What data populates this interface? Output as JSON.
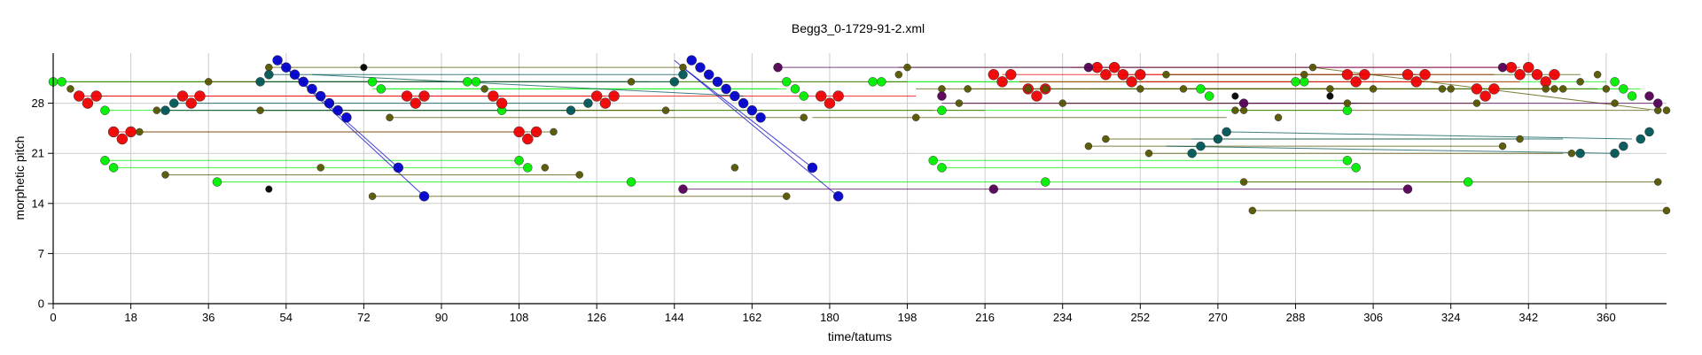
{
  "chart_data": {
    "type": "scatter",
    "title": "Begg3_0-1729-91-2.xml",
    "xlabel": "time/tatums",
    "ylabel": "morphetic pitch",
    "xlim": [
      0,
      374
    ],
    "ylim": [
      0,
      35
    ],
    "xticks": [
      0,
      18,
      36,
      54,
      72,
      90,
      108,
      126,
      144,
      162,
      180,
      198,
      216,
      234,
      252,
      270,
      288,
      306,
      324,
      342,
      360
    ],
    "yticks": [
      0,
      7,
      14,
      21,
      28
    ],
    "grid": true,
    "colors": {
      "green": "#00ee00",
      "red": "#ee0000",
      "blue": "#0000cc",
      "olive": "#555500",
      "teal": "#005555",
      "purple": "#550055",
      "black": "#000000"
    },
    "series": [
      {
        "color": "green",
        "segments": [
          [
            0,
            31,
            90,
            31
          ],
          [
            2,
            31,
            96,
            31
          ],
          [
            98,
            31,
            290,
            31
          ],
          [
            190,
            31,
            360,
            31
          ],
          [
            74,
            30,
            168,
            30
          ],
          [
            76,
            30,
            170,
            30
          ],
          [
            240,
            30,
            365,
            30
          ],
          [
            242,
            30,
            368,
            30
          ],
          [
            12,
            27,
            108,
            27
          ],
          [
            104,
            27,
            204,
            27
          ],
          [
            206,
            27,
            300,
            27
          ],
          [
            12,
            20,
            108,
            20
          ],
          [
            14,
            19,
            110,
            19
          ],
          [
            204,
            20,
            300,
            20
          ],
          [
            206,
            19,
            302,
            19
          ],
          [
            38,
            17,
            134,
            17
          ],
          [
            134,
            17,
            230,
            17
          ],
          [
            230,
            17,
            328,
            17
          ]
        ],
        "points": [
          [
            0,
            31
          ],
          [
            2,
            31
          ],
          [
            12,
            27
          ],
          [
            12,
            20
          ],
          [
            14,
            19
          ],
          [
            38,
            17
          ],
          [
            74,
            31
          ],
          [
            76,
            30
          ],
          [
            96,
            31
          ],
          [
            98,
            31
          ],
          [
            104,
            27
          ],
          [
            108,
            20
          ],
          [
            110,
            19
          ],
          [
            134,
            17
          ],
          [
            170,
            31
          ],
          [
            172,
            30
          ],
          [
            174,
            29
          ],
          [
            190,
            31
          ],
          [
            192,
            31
          ],
          [
            204,
            20
          ],
          [
            206,
            19
          ],
          [
            206,
            27
          ],
          [
            230,
            17
          ],
          [
            266,
            30
          ],
          [
            268,
            29
          ],
          [
            288,
            31
          ],
          [
            290,
            31
          ],
          [
            300,
            20
          ],
          [
            300,
            27
          ],
          [
            302,
            19
          ],
          [
            328,
            17
          ],
          [
            362,
            31
          ],
          [
            364,
            30
          ],
          [
            366,
            29
          ]
        ]
      },
      {
        "color": "red",
        "segments": [
          [
            6,
            29,
            102,
            29
          ],
          [
            10,
            29,
            104,
            29
          ],
          [
            104,
            29,
            200,
            29
          ],
          [
            14,
            24,
            110,
            24
          ],
          [
            90,
            29,
            128,
            29
          ],
          [
            220,
            32,
            316,
            32
          ],
          [
            224,
            31,
            318,
            31
          ],
          [
            236,
            33,
            340,
            33
          ],
          [
            248,
            32,
            334,
            32
          ],
          [
            252,
            31,
            340,
            31
          ]
        ],
        "points": [
          [
            6,
            29
          ],
          [
            8,
            28
          ],
          [
            10,
            29
          ],
          [
            14,
            24
          ],
          [
            16,
            23
          ],
          [
            18,
            24
          ],
          [
            30,
            29
          ],
          [
            32,
            28
          ],
          [
            34,
            29
          ],
          [
            82,
            29
          ],
          [
            84,
            28
          ],
          [
            86,
            29
          ],
          [
            102,
            29
          ],
          [
            104,
            28
          ],
          [
            108,
            24
          ],
          [
            110,
            23
          ],
          [
            112,
            24
          ],
          [
            126,
            29
          ],
          [
            128,
            28
          ],
          [
            130,
            29
          ],
          [
            178,
            29
          ],
          [
            180,
            28
          ],
          [
            182,
            29
          ],
          [
            218,
            32
          ],
          [
            220,
            31
          ],
          [
            222,
            32
          ],
          [
            226,
            30
          ],
          [
            228,
            29
          ],
          [
            230,
            30
          ],
          [
            242,
            33
          ],
          [
            244,
            32
          ],
          [
            246,
            33
          ],
          [
            248,
            32
          ],
          [
            250,
            31
          ],
          [
            252,
            32
          ],
          [
            300,
            32
          ],
          [
            302,
            31
          ],
          [
            304,
            32
          ],
          [
            314,
            32
          ],
          [
            316,
            31
          ],
          [
            318,
            32
          ],
          [
            330,
            30
          ],
          [
            332,
            29
          ],
          [
            334,
            30
          ],
          [
            338,
            33
          ],
          [
            340,
            32
          ],
          [
            342,
            33
          ],
          [
            344,
            32
          ],
          [
            346,
            31
          ],
          [
            348,
            32
          ]
        ]
      },
      {
        "color": "blue",
        "segments": [
          [
            52,
            34,
            86,
            15
          ],
          [
            54,
            33,
            80,
            19
          ],
          [
            144,
            34,
            182,
            15
          ],
          [
            146,
            33,
            176,
            19
          ]
        ],
        "points": [
          [
            52,
            34
          ],
          [
            54,
            33
          ],
          [
            56,
            32
          ],
          [
            58,
            31
          ],
          [
            60,
            30
          ],
          [
            62,
            29
          ],
          [
            64,
            28
          ],
          [
            66,
            27
          ],
          [
            68,
            26
          ],
          [
            80,
            19
          ],
          [
            86,
            15
          ],
          [
            148,
            34
          ],
          [
            150,
            33
          ],
          [
            152,
            32
          ],
          [
            154,
            31
          ],
          [
            156,
            30
          ],
          [
            158,
            29
          ],
          [
            160,
            28
          ],
          [
            162,
            27
          ],
          [
            164,
            26
          ],
          [
            176,
            19
          ],
          [
            182,
            15
          ]
        ]
      },
      {
        "color": "olive",
        "segments": [
          [
            4,
            31,
            100,
            31
          ],
          [
            20,
            24,
            116,
            24
          ],
          [
            24,
            27,
            122,
            27
          ],
          [
            26,
            18,
            122,
            18
          ],
          [
            36,
            31,
            134,
            31
          ],
          [
            48,
            27,
            144,
            27
          ],
          [
            50,
            33,
            146,
            33
          ],
          [
            60,
            31,
            138,
            31
          ],
          [
            78,
            26,
            174,
            26
          ],
          [
            74,
            15,
            170,
            15
          ],
          [
            102,
            31,
            198,
            31
          ],
          [
            120,
            27,
            216,
            27
          ],
          [
            176,
            26,
            272,
            26
          ],
          [
            196,
            33,
            292,
            33
          ],
          [
            200,
            30,
            296,
            30
          ],
          [
            210,
            28,
            306,
            28
          ],
          [
            212,
            30,
            308,
            30
          ],
          [
            226,
            30,
            322,
            30
          ],
          [
            234,
            28,
            330,
            28
          ],
          [
            240,
            22,
            336,
            22
          ],
          [
            244,
            23,
            340,
            23
          ],
          [
            252,
            30,
            348,
            30
          ],
          [
            254,
            21,
            350,
            21
          ],
          [
            258,
            32,
            354,
            32
          ],
          [
            262,
            30,
            358,
            30
          ],
          [
            274,
            27,
            370,
            27
          ],
          [
            276,
            17,
            372,
            17
          ],
          [
            278,
            13,
            374,
            13
          ],
          [
            292,
            33,
            372,
            27
          ]
        ],
        "points": [
          [
            4,
            30
          ],
          [
            20,
            24
          ],
          [
            24,
            27
          ],
          [
            26,
            18
          ],
          [
            36,
            31
          ],
          [
            48,
            27
          ],
          [
            50,
            33
          ],
          [
            62,
            19
          ],
          [
            74,
            15
          ],
          [
            78,
            26
          ],
          [
            100,
            30
          ],
          [
            114,
            19
          ],
          [
            116,
            24
          ],
          [
            122,
            18
          ],
          [
            134,
            31
          ],
          [
            142,
            27
          ],
          [
            146,
            33
          ],
          [
            158,
            19
          ],
          [
            170,
            15
          ],
          [
            174,
            26
          ],
          [
            196,
            32
          ],
          [
            198,
            33
          ],
          [
            200,
            26
          ],
          [
            206,
            30
          ],
          [
            210,
            28
          ],
          [
            212,
            30
          ],
          [
            226,
            30
          ],
          [
            230,
            30
          ],
          [
            234,
            28
          ],
          [
            240,
            22
          ],
          [
            244,
            23
          ],
          [
            252,
            30
          ],
          [
            254,
            21
          ],
          [
            258,
            32
          ],
          [
            262,
            30
          ],
          [
            274,
            27
          ],
          [
            276,
            27
          ],
          [
            276,
            17
          ],
          [
            278,
            13
          ],
          [
            284,
            26
          ],
          [
            290,
            32
          ],
          [
            292,
            33
          ],
          [
            296,
            30
          ],
          [
            300,
            28
          ],
          [
            306,
            30
          ],
          [
            322,
            30
          ],
          [
            324,
            30
          ],
          [
            330,
            28
          ],
          [
            336,
            22
          ],
          [
            340,
            23
          ],
          [
            346,
            30
          ],
          [
            348,
            30
          ],
          [
            350,
            30
          ],
          [
            352,
            21
          ],
          [
            354,
            31
          ],
          [
            358,
            32
          ],
          [
            360,
            30
          ],
          [
            362,
            28
          ],
          [
            372,
            27
          ],
          [
            374,
            27
          ],
          [
            372,
            17
          ],
          [
            374,
            13
          ]
        ]
      },
      {
        "color": "teal",
        "segments": [
          [
            26,
            27,
            120,
            27
          ],
          [
            28,
            28,
            124,
            28
          ],
          [
            48,
            31,
            144,
            31
          ],
          [
            50,
            32,
            146,
            32
          ],
          [
            60,
            32,
            160,
            29
          ],
          [
            258,
            22,
            362,
            21
          ],
          [
            264,
            23,
            350,
            23
          ],
          [
            272,
            24,
            366,
            23
          ]
        ],
        "points": [
          [
            26,
            27
          ],
          [
            28,
            28
          ],
          [
            48,
            31
          ],
          [
            50,
            32
          ],
          [
            120,
            27
          ],
          [
            124,
            28
          ],
          [
            144,
            31
          ],
          [
            146,
            32
          ],
          [
            264,
            21
          ],
          [
            266,
            22
          ],
          [
            270,
            23
          ],
          [
            272,
            24
          ],
          [
            354,
            21
          ],
          [
            362,
            21
          ],
          [
            364,
            22
          ],
          [
            368,
            23
          ],
          [
            370,
            24
          ]
        ]
      },
      {
        "color": "purple",
        "segments": [
          [
            146,
            16,
            218,
            16
          ],
          [
            218,
            16,
            314,
            16
          ],
          [
            168,
            33,
            240,
            33
          ],
          [
            240,
            33,
            336,
            33
          ],
          [
            206,
            28,
            302,
            28
          ],
          [
            276,
            28,
            372,
            28
          ]
        ],
        "points": [
          [
            146,
            16
          ],
          [
            218,
            16
          ],
          [
            314,
            16
          ],
          [
            168,
            33
          ],
          [
            240,
            33
          ],
          [
            336,
            33
          ],
          [
            206,
            29
          ],
          [
            276,
            28
          ],
          [
            370,
            29
          ],
          [
            372,
            28
          ]
        ]
      },
      {
        "color": "black",
        "segments": [],
        "points": [
          [
            50,
            16
          ],
          [
            72,
            33
          ],
          [
            274,
            29
          ],
          [
            296,
            29
          ]
        ]
      }
    ]
  }
}
